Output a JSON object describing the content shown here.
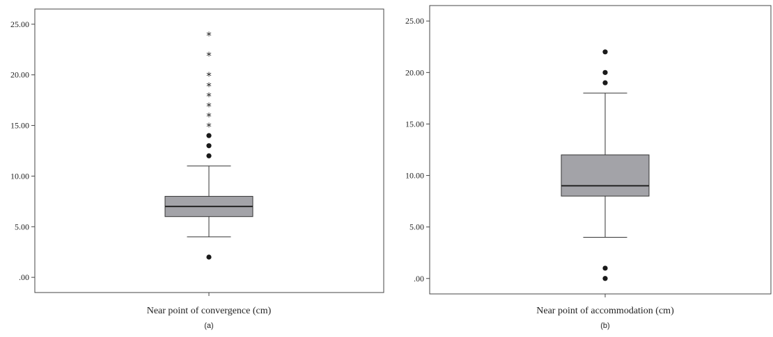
{
  "colors": {
    "box_fill": "#a3a3a8",
    "ink": "#1a1a1a",
    "frame": "#444444"
  },
  "chart_data": [
    {
      "type": "boxplot",
      "panel_label": "(a)",
      "xlabel": "Near point of convergence (cm)",
      "ylabel": "",
      "ylim": [
        -1.5,
        26.5
      ],
      "yticks": [
        0,
        5,
        10,
        15,
        20,
        25
      ],
      "ytick_labels": [
        ".00",
        "5.00",
        "10.00",
        "15.00",
        "20.00",
        "25.00"
      ],
      "grid": false,
      "box": {
        "whisker_low": 4,
        "q1": 6,
        "median": 7,
        "q3": 8,
        "whisker_high": 11
      },
      "outliers": [
        2,
        12,
        13,
        14
      ],
      "extremes": [
        15,
        16,
        17,
        18,
        19,
        20,
        22,
        24
      ]
    },
    {
      "type": "boxplot",
      "panel_label": "(b)",
      "xlabel": "Near point of accommodation (cm)",
      "ylabel": "",
      "ylim": [
        -1.5,
        26.5
      ],
      "yticks": [
        0,
        5,
        10,
        15,
        20,
        25
      ],
      "ytick_labels": [
        ".00",
        "5.00",
        "10.00",
        "15.00",
        "20.00",
        "25.00"
      ],
      "grid": false,
      "box": {
        "whisker_low": 4,
        "q1": 8,
        "median": 9,
        "q3": 12,
        "whisker_high": 18
      },
      "outliers": [
        0,
        1,
        19,
        20,
        22
      ],
      "extremes": []
    }
  ]
}
